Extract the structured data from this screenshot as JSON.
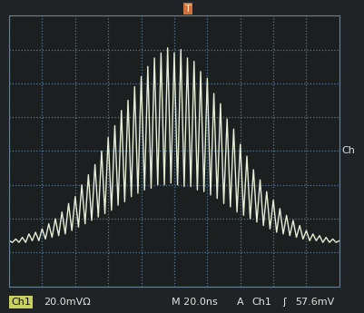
{
  "chart_data": {
    "type": "line",
    "annotations": [
      "T",
      "Ch",
      "Ch1",
      "20.0mVΩ",
      "M 20.0ns",
      "A",
      "Ch1",
      "ʃ",
      "57.6mV"
    ],
    "x": [
      -100,
      -98,
      -96,
      -94,
      -92,
      -90,
      -88,
      -86,
      -84,
      -82,
      -80,
      -78,
      -76,
      -74,
      -72,
      -70,
      -68,
      -66,
      -64,
      -62,
      -60,
      -58,
      -56,
      -54,
      -52,
      -50,
      -48,
      -46,
      -44,
      -42,
      -40,
      -38,
      -36,
      -34,
      -32,
      -30,
      -28,
      -26,
      -24,
      -22,
      -20,
      -18,
      -16,
      -14,
      -12,
      -10,
      -8,
      -6,
      -4,
      -2,
      0,
      2,
      4,
      6,
      8,
      10,
      12,
      14,
      16,
      18,
      20,
      22,
      24,
      26,
      28,
      30,
      32,
      34,
      36,
      38,
      40,
      42,
      44,
      46,
      48,
      50,
      52,
      54,
      56,
      58,
      60,
      62,
      64,
      66,
      68,
      70,
      72,
      74,
      76,
      78,
      80,
      82,
      84,
      86,
      88,
      90,
      92,
      94,
      96,
      98,
      100
    ],
    "series": [
      {
        "color": "#e6eed8",
        "values": [
          -53,
          -54,
          -52,
          -54,
          -51,
          -54,
          -49,
          -53,
          -48,
          -53,
          -46,
          -52,
          -43,
          -51,
          -40,
          -50,
          -36,
          -49,
          -31,
          -47,
          -27,
          -45,
          -20,
          -43,
          -14,
          -41,
          -8,
          -39,
          0,
          -37,
          8,
          -35,
          15,
          -32,
          24,
          -30,
          30,
          -27,
          38,
          -25,
          44,
          -23,
          50,
          -22,
          55,
          -20,
          58,
          -20,
          61,
          -19,
          58,
          -20,
          60,
          -21,
          55,
          -21,
          53,
          -23,
          47,
          -24,
          43,
          -26,
          34,
          -28,
          28,
          -31,
          19,
          -33,
          13,
          -36,
          4,
          -38,
          -3,
          -40,
          -11,
          -42,
          -17,
          -44,
          -24,
          -46,
          -29,
          -48,
          -34,
          -49,
          -38,
          -50,
          -41,
          -51,
          -44,
          -52,
          -47,
          -53,
          -49,
          -53,
          -50,
          -54,
          -51,
          -54,
          -52,
          -54,
          -53
        ]
      }
    ],
    "xlim": [
      -100,
      100
    ],
    "xticks": [
      -100,
      -80,
      -60,
      -40,
      -20,
      0,
      20,
      40,
      60,
      80,
      100
    ],
    "ylim": [
      -80,
      80
    ],
    "yticks": [
      -80,
      -60,
      -40,
      -20,
      0,
      20,
      40,
      60,
      80
    ],
    "grid": true,
    "tick_labels": false
  }
}
